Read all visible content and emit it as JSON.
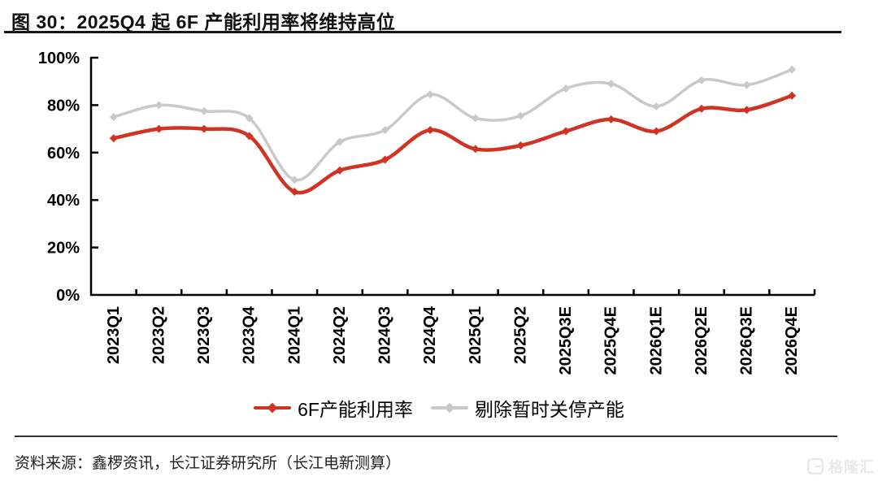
{
  "figure": {
    "title": "图 30：2025Q4 起 6F 产能利用率将维持高位",
    "source": "资料来源：鑫椤资讯，长江证券研究所（长江电新测算）",
    "watermark": "格隆汇"
  },
  "chart_data": {
    "type": "line",
    "title": "2025Q4 起 6F 产能利用率将维持高位",
    "xlabel": "",
    "ylabel": "",
    "ylim": [
      0,
      100
    ],
    "yticks": [
      0,
      20,
      40,
      60,
      80,
      100
    ],
    "ytick_labels": [
      "0%",
      "20%",
      "40%",
      "60%",
      "80%",
      "100%"
    ],
    "grid": false,
    "smooth": true,
    "legend_position": "bottom",
    "categories": [
      "2023Q1",
      "2023Q2",
      "2023Q3",
      "2023Q4",
      "2024Q1",
      "2024Q2",
      "2024Q3",
      "2024Q4",
      "2025Q1",
      "2025Q2",
      "2025Q3E",
      "2025Q4E",
      "2026Q1E",
      "2026Q2E",
      "2026Q3E",
      "2026Q4E"
    ],
    "series": [
      {
        "name": "6F产能利用率",
        "color": "#d13323",
        "marker": "diamond",
        "values": [
          66,
          70,
          70,
          67,
          43.5,
          52.5,
          57,
          69.5,
          61.5,
          63,
          69,
          74,
          69,
          78.5,
          78,
          84
        ]
      },
      {
        "name": "剔除暂时关停产能",
        "color": "#c9c9c9",
        "marker": "diamond",
        "values": [
          75,
          80,
          77.5,
          74.5,
          48.5,
          64.5,
          69.5,
          84.5,
          74.5,
          75.5,
          87,
          89,
          79.5,
          90.5,
          88.5,
          95
        ]
      }
    ]
  }
}
